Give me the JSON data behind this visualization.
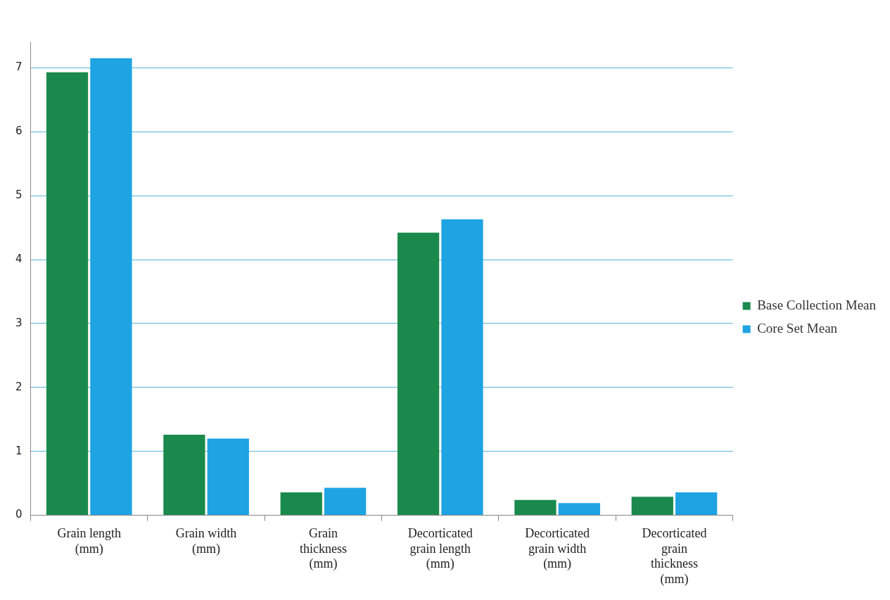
{
  "chart_data": {
    "type": "bar",
    "categories": [
      "Grain length (mm)",
      "Grain width (mm)",
      "Grain thickness (mm)",
      "Decorticated grain length (mm)",
      "Decorticated grain width (mm)",
      "Decorticated grain thickness (mm)"
    ],
    "series": [
      {
        "name": "Base Collection Mean",
        "color": "#1a8a4c",
        "values": [
          6.93,
          1.26,
          0.36,
          4.42,
          0.24,
          0.29
        ]
      },
      {
        "name": "Core Set Mean",
        "color": "#1ea3e3",
        "values": [
          7.15,
          1.2,
          0.43,
          4.63,
          0.19,
          0.36
        ]
      }
    ],
    "ylim": [
      0,
      7.4
    ],
    "yticks": [
      0,
      1,
      2,
      3,
      4,
      5,
      6,
      7
    ],
    "grid": "y",
    "legend": "right"
  }
}
